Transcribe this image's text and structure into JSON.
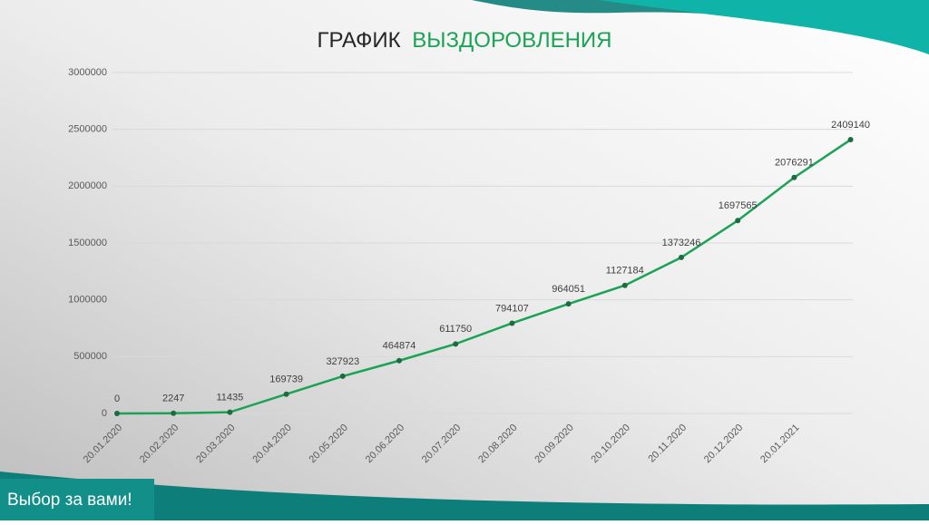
{
  "title": "ГРАФИК",
  "title_highlight": "ВЫЗДОРОВЛЕНИЯ",
  "footer": "Выбор за вами!",
  "chart_data": {
    "type": "line",
    "categories": [
      "20.01.2020",
      "20.02.2020",
      "20.03.2020",
      "20.04.2020",
      "20.05.2020",
      "20.06.2020",
      "20.07.2020",
      "20.08.2020",
      "20.09.2020",
      "20.10.2020",
      "20.11.2020",
      "20.12.2020",
      "20.01.2021",
      null
    ],
    "series": [
      {
        "name": "Выздоровления",
        "color": "#1ba355",
        "values": [
          0,
          2247,
          11435,
          169739,
          327923,
          464874,
          611750,
          794107,
          964051,
          1127184,
          1373246,
          1697565,
          2076291,
          2409140
        ]
      }
    ],
    "ylim": [
      0,
      3000000
    ],
    "yticks": [
      0,
      500000,
      1000000,
      1500000,
      2000000,
      2500000,
      3000000
    ],
    "grid": true
  }
}
